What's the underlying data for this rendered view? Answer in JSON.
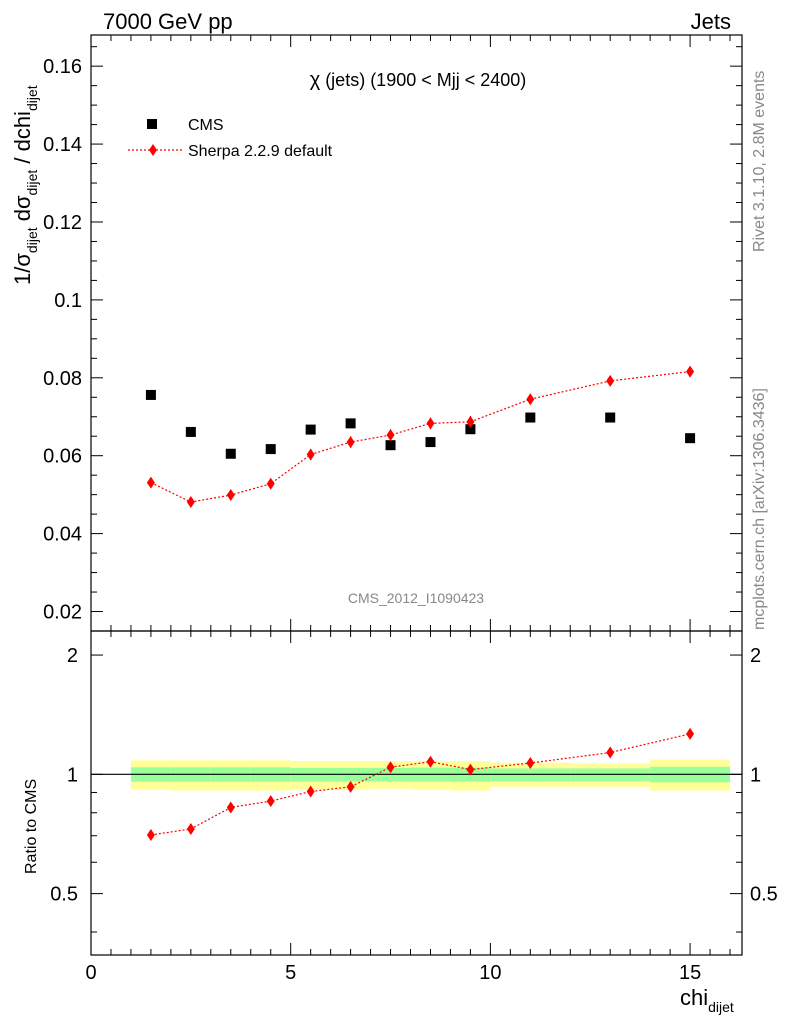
{
  "header": {
    "left": "7000 GeV pp",
    "right": "Jets"
  },
  "side": {
    "rivet": "Rivet 3.1.10,  2.8M events",
    "mcplots": "mcplots.cern.ch [arXiv:1306.3436]"
  },
  "main": {
    "title_chi": "χ",
    "title_rest": " (jets) (1900 < Mjj < 2400)",
    "watermark": "CMS_2012_I1090423",
    "ylabel": {
      "p1": "1/σ",
      "s1": "dijet",
      "p2": " dσ",
      "s2": "dijet",
      "p3": " / dchi",
      "s3": "dijet"
    }
  },
  "ratio": {
    "ylabel": "Ratio to CMS"
  },
  "xaxis": {
    "label": "chi",
    "sub": "dijet"
  },
  "colors": {
    "data": "#000000",
    "mc": "#ff0000",
    "band_inner": "#99ff99",
    "band_outer": "#ffff99"
  },
  "chart_data": {
    "type": "scatter",
    "xlim": [
      0,
      16.3
    ],
    "ylim": [
      0.015,
      0.168
    ],
    "ratio_ylim": [
      0.35,
      2.3
    ],
    "x_ticks": [
      "0",
      "5",
      "10",
      "15"
    ],
    "y_ticks": [
      "0.02",
      "0.04",
      "0.06",
      "0.08",
      "0.1",
      "0.12",
      "0.14",
      "0.16"
    ],
    "ratio_ticks": [
      "0.5",
      "1",
      "2"
    ],
    "legend_position": "top-left",
    "series": [
      {
        "name": "CMS",
        "marker": "square",
        "x": [
          1.5,
          2.5,
          3.5,
          4.5,
          5.5,
          6.5,
          7.5,
          8.5,
          9.5,
          11,
          13,
          15
        ],
        "values": [
          0.0756,
          0.0661,
          0.0605,
          0.0617,
          0.0667,
          0.0683,
          0.0627,
          0.0635,
          0.0668,
          0.0698,
          0.0698,
          0.0645
        ]
      },
      {
        "name": "Sherpa 2.2.9 default",
        "marker": "diamond",
        "x": [
          1.5,
          2.5,
          3.5,
          4.5,
          5.5,
          6.5,
          7.5,
          8.5,
          9.5,
          11,
          13,
          15
        ],
        "values": [
          0.0531,
          0.0481,
          0.0499,
          0.0528,
          0.0603,
          0.0635,
          0.0653,
          0.0683,
          0.0687,
          0.0745,
          0.0792,
          0.0816
        ],
        "errors": [
          0.0013,
          0.0012,
          0.0013,
          0.0013,
          0.0014,
          0.0015,
          0.0015,
          0.0015,
          0.0015,
          0.0013,
          0.0012,
          0.0012
        ]
      }
    ],
    "ratio": {
      "x": [
        1.5,
        2.5,
        3.5,
        4.5,
        5.5,
        6.5,
        7.5,
        8.5,
        9.5,
        11,
        13,
        15
      ],
      "values": [
        0.703,
        0.728,
        0.825,
        0.856,
        0.905,
        0.93,
        1.042,
        1.076,
        1.028,
        1.068,
        1.135,
        1.265
      ]
    },
    "bands": [
      {
        "x0": 1,
        "x1": 2,
        "inner": [
          0.958,
          1.042
        ],
        "outer": [
          0.915,
          1.085
        ]
      },
      {
        "x0": 2,
        "x1": 3,
        "inner": [
          0.958,
          1.042
        ],
        "outer": [
          0.91,
          1.085
        ]
      },
      {
        "x0": 3,
        "x1": 4,
        "inner": [
          0.958,
          1.042
        ],
        "outer": [
          0.91,
          1.085
        ]
      },
      {
        "x0": 4,
        "x1": 5,
        "inner": [
          0.958,
          1.042
        ],
        "outer": [
          0.91,
          1.085
        ]
      },
      {
        "x0": 5,
        "x1": 6,
        "inner": [
          0.96,
          1.038
        ],
        "outer": [
          0.915,
          1.08
        ]
      },
      {
        "x0": 6,
        "x1": 7,
        "inner": [
          0.96,
          1.038
        ],
        "outer": [
          0.915,
          1.08
        ]
      },
      {
        "x0": 7,
        "x1": 8,
        "inner": [
          0.96,
          1.038
        ],
        "outer": [
          0.92,
          1.08
        ]
      },
      {
        "x0": 8,
        "x1": 9,
        "inner": [
          0.96,
          1.04
        ],
        "outer": [
          0.915,
          1.08
        ]
      },
      {
        "x0": 9,
        "x1": 10,
        "inner": [
          0.958,
          1.04
        ],
        "outer": [
          0.91,
          1.08
        ]
      },
      {
        "x0": 10,
        "x1": 12,
        "inner": [
          0.962,
          1.035
        ],
        "outer": [
          0.93,
          1.07
        ]
      },
      {
        "x0": 12,
        "x1": 14,
        "inner": [
          0.962,
          1.035
        ],
        "outer": [
          0.93,
          1.065
        ]
      },
      {
        "x0": 14,
        "x1": 16,
        "inner": [
          0.955,
          1.045
        ],
        "outer": [
          0.91,
          1.09
        ]
      }
    ]
  }
}
